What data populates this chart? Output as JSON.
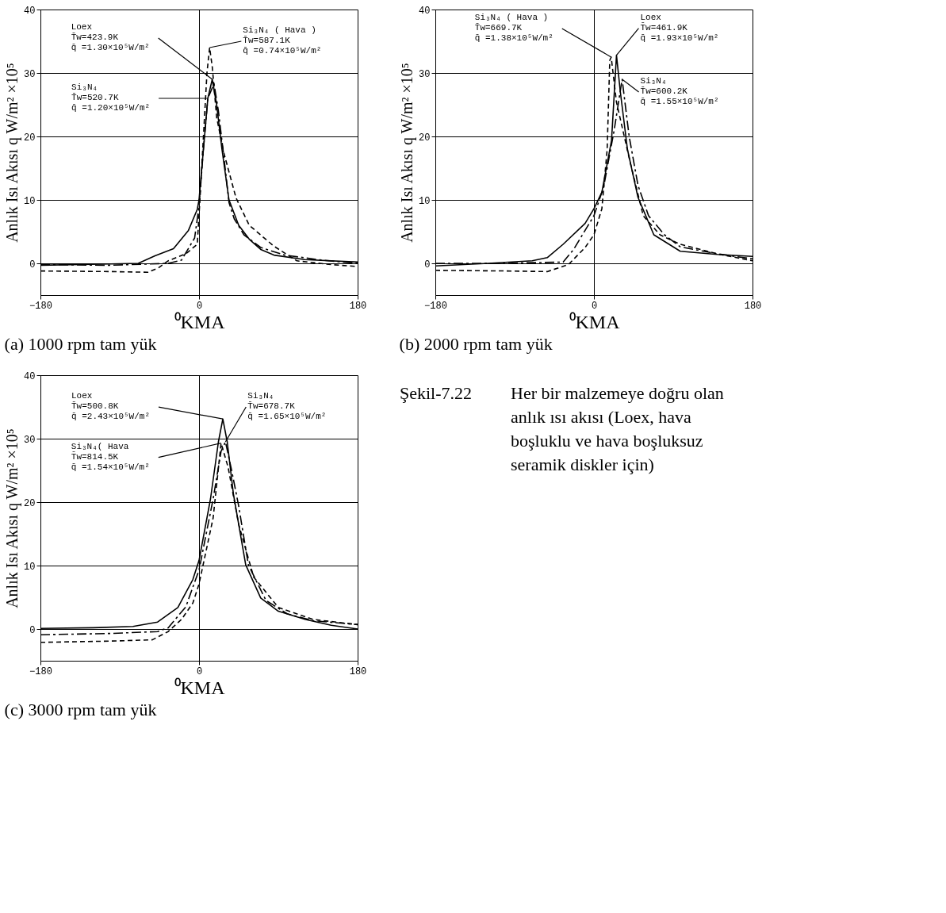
{
  "chart_data": [
    {
      "type": "line",
      "title": "(a) 1000 rpm tam yük",
      "xlabel": "⁰KMA",
      "ylabel": "Anlık Isı Akısı   q  W/m² ×10⁵",
      "xlim": [
        -180,
        180
      ],
      "ylim": [
        -5,
        40
      ],
      "xticks": [
        -180,
        0,
        180
      ],
      "yticks": [
        0,
        10,
        20,
        30,
        40
      ],
      "grid": true,
      "series": [
        {
          "color": "#000000",
          "line_style": "solid",
          "x": [
            -180,
            -100,
            -69,
            -50,
            -29,
            -12,
            -2,
            0,
            5,
            10,
            15,
            20,
            26,
            34,
            45,
            57,
            70,
            85,
            120,
            180
          ],
          "values": [
            -0.3,
            -0.1,
            0,
            1.2,
            2.3,
            5.2,
            8.5,
            10,
            18,
            26,
            29,
            25,
            18,
            10,
            6,
            3.8,
            2.2,
            1.3,
            0.6,
            0.2
          ]
        },
        {
          "color": "#000000",
          "line_style": "dashed",
          "x": [
            -180,
            -100,
            -35,
            -20,
            -5,
            0,
            5,
            10,
            17,
            22,
            28,
            34,
            40,
            51,
            70,
            97,
            140,
            180
          ],
          "values": [
            -0.2,
            -0.3,
            0,
            0.5,
            4,
            9,
            18,
            26,
            28.3,
            24,
            17,
            9.6,
            7,
            4.5,
            2.5,
            1.3,
            0.5,
            0
          ]
        },
        {
          "color": "#000000",
          "line_style": "dashed",
          "x": [
            -180,
            -100,
            -58,
            -46,
            -35,
            -15,
            -2,
            1,
            5,
            9,
            12,
            15,
            20,
            28,
            42,
            57,
            85,
            111,
            150,
            180
          ],
          "values": [
            -1.2,
            -1.3,
            -1.4,
            -0.7,
            0.4,
            1.5,
            3,
            10,
            20,
            30,
            34,
            31,
            23,
            17.5,
            10.3,
            6,
            2.7,
            0.4,
            -0.2,
            -0.5
          ]
        }
      ],
      "annotations": [
        {
          "text": "Loex\nT̄w=423.9K\nq̄ =1.30×10⁵W/m²",
          "x": 15,
          "y": 29
        },
        {
          "text": "Si₃N₄ ( Hava )\nT̄w=587.1K\nq̄ =0.74×10⁵W/m²",
          "x": 12,
          "y": 34
        },
        {
          "text": "Si₃N₄\nT̄w=520.7K\nq̄ =1.20×10⁵W/m²",
          "x": 10,
          "y": 26
        }
      ]
    },
    {
      "type": "line",
      "title": "(b) 2000 rpm tam yük",
      "xlabel": "⁰KMA",
      "ylabel": "Anlık Isı Akısı   q  W/m² ×10⁵",
      "xlim": [
        -180,
        180
      ],
      "ylim": [
        -5,
        40
      ],
      "xticks": [
        -180,
        0,
        180
      ],
      "yticks": [
        0,
        10,
        20,
        30,
        40
      ],
      "grid": true,
      "series": [
        {
          "color": "#000000",
          "line_style": "solid",
          "x": [
            -180,
            -120,
            -70,
            -53,
            -35,
            -10,
            0,
            9,
            20,
            25.6,
            30,
            38,
            50,
            68,
            98,
            140,
            180
          ],
          "values": [
            -0.4,
            0,
            0.4,
            0.9,
            3,
            6.3,
            8.6,
            11.2,
            19.4,
            32.8,
            27,
            18,
            10.4,
            4.5,
            1.9,
            1.4,
            1.1
          ]
        },
        {
          "color": "#000000",
          "line_style": "dashed",
          "x": [
            -180,
            -100,
            -35,
            -23,
            0,
            11,
            23,
            32,
            40,
            50,
            62,
            80,
            98,
            140,
            180
          ],
          "values": [
            0,
            0,
            0.2,
            2.2,
            7.5,
            12,
            21,
            29,
            20,
            12.3,
            7.5,
            4.5,
            2.6,
            1.5,
            0.7
          ]
        },
        {
          "color": "#000000",
          "line_style": "dashed",
          "x": [
            -180,
            -100,
            -53,
            -29,
            -10,
            0,
            9,
            15,
            18,
            19.6,
            25.6,
            41,
            56,
            75,
            98,
            140,
            180
          ],
          "values": [
            -1.1,
            -1.2,
            -1.3,
            -0.2,
            2.5,
            4.5,
            8.6,
            17.9,
            32,
            32.5,
            25.4,
            16,
            7.5,
            4.5,
            3,
            1.5,
            0.4
          ]
        }
      ],
      "annotations": [
        {
          "text": "Si₃N₄ ( Hava )\nT̄w=669.7K\nq̄ =1.38×10⁵W/m²",
          "x": 19.6,
          "y": 32.5
        },
        {
          "text": "Loex\nT̄w=461.9K\nq̄ =1.93×10⁵W/m²",
          "x": 25.6,
          "y": 32.8
        },
        {
          "text": "Si₃N₄\nT̄w=600.2K\nq̄ =1.55×10⁵W/m²",
          "x": 32,
          "y": 29
        }
      ]
    },
    {
      "type": "line",
      "title": "(c) 3000 rpm tam yük",
      "xlabel": "⁰KMA",
      "ylabel": "Anlık Isı Akısı   q  W/m² ×10⁵",
      "xlim": [
        -180,
        180
      ],
      "ylim": [
        -5,
        40
      ],
      "xticks": [
        -180,
        0,
        180
      ],
      "yticks": [
        0,
        10,
        20,
        30,
        40
      ],
      "grid": true,
      "series": [
        {
          "color": "#000000",
          "line_style": "solid",
          "x": [
            -180,
            -120,
            -75,
            -47,
            -24,
            -7,
            0,
            13,
            22,
            27,
            32,
            39,
            53,
            70,
            90,
            121,
            150,
            180
          ],
          "values": [
            0.1,
            0.2,
            0.4,
            1.1,
            3.4,
            7.8,
            10.8,
            20.5,
            29.5,
            33.1,
            29.5,
            21.3,
            10.1,
            4.9,
            2.8,
            1.5,
            0.6,
            0
          ]
        },
        {
          "color": "#000000",
          "line_style": "dashed",
          "x": [
            -180,
            -100,
            -47,
            -35,
            -15,
            0,
            16,
            25,
            30,
            37,
            45,
            56,
            76,
            100,
            130,
            180
          ],
          "values": [
            -0.9,
            -0.7,
            -0.4,
            0.2,
            3.5,
            9.3,
            20.5,
            28,
            29.5,
            25,
            19.4,
            10.1,
            4.5,
            2.4,
            1.3,
            0.7
          ]
        },
        {
          "color": "#000000",
          "line_style": "dashed",
          "x": [
            -180,
            -100,
            -53,
            -35,
            -20,
            -7,
            0,
            16,
            25,
            33,
            45,
            62,
            90,
            130,
            180
          ],
          "values": [
            -2.1,
            -1.9,
            -1.7,
            -0.4,
            1.5,
            4.1,
            7.1,
            17.5,
            29.3,
            25.5,
            16.5,
            8.2,
            3.4,
            1.5,
            0.7
          ]
        }
      ],
      "annotations": [
        {
          "text": "Loex\nT̄w=500.8K\nq̄ =2.43×10⁵W/m²",
          "x": 27,
          "y": 33.1
        },
        {
          "text": "Si₃N₄\nT̄w=678.7K\nq̄ =1.65×10⁵W/m²",
          "x": 30,
          "y": 29.5
        },
        {
          "text": "Si₃N₄( Hava\nT̄w=814.5K\nq̄ =1.54×10⁵W/m²",
          "x": 25,
          "y": 29.3
        }
      ]
    },
    {
      "type": "other",
      "annotations": [
        "Şekil-7.22",
        "Her bir malzemeye doğru olan anlık ısı akısı (Loex, hava boşluklu ve hava boşluksuz seramik diskler için)"
      ]
    }
  ]
}
